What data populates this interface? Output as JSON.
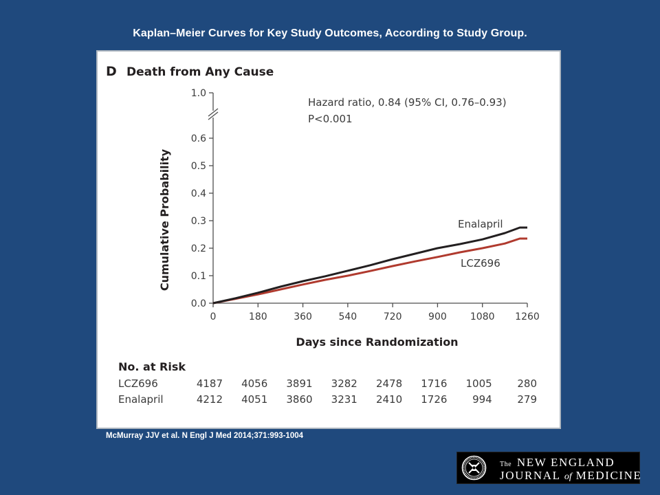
{
  "slide": {
    "title": "Kaplan–Meier Curves for Key Study Outcomes, According to Study Group.",
    "citation": "McMurray JJV et al. N Engl J Med 2014;371:993-1004"
  },
  "logo": {
    "the": "The",
    "line1": "NEW ENGLAND",
    "line2_a": "JOURNAL",
    "line2_of": "of",
    "line2_b": "MEDICINE"
  },
  "colors": {
    "background": "#1f497d",
    "enalapril": "#231f20",
    "lcz696": "#b03a2e",
    "axis": "#4d4d4d"
  },
  "chart_data": {
    "type": "line",
    "panel_label": "D",
    "title": "Death from Any Cause",
    "xlabel": "Days since Randomization",
    "ylabel": "Cumulative Probability",
    "xlim": [
      0,
      1260
    ],
    "ylim": [
      0,
      0.6
    ],
    "y_break_top": 1.0,
    "x_ticks": [
      0,
      180,
      360,
      540,
      720,
      900,
      1080,
      1260
    ],
    "y_ticks": [
      "0.0",
      "0.1",
      "0.2",
      "0.3",
      "0.4",
      "0.5",
      "0.6"
    ],
    "y_top_tick": "1.0",
    "annotation": [
      "Hazard ratio, 0.84 (95% CI, 0.76–0.93)",
      "P<0.001"
    ],
    "series": [
      {
        "name": "Enalapril",
        "x": [
          0,
          90,
          180,
          270,
          360,
          450,
          540,
          630,
          720,
          810,
          900,
          990,
          1080,
          1170,
          1230,
          1260
        ],
        "y": [
          0,
          0.018,
          0.038,
          0.06,
          0.08,
          0.098,
          0.118,
          0.138,
          0.16,
          0.18,
          0.2,
          0.215,
          0.232,
          0.255,
          0.275,
          0.275
        ]
      },
      {
        "name": "LCZ696",
        "x": [
          0,
          90,
          180,
          270,
          360,
          450,
          540,
          630,
          720,
          810,
          900,
          990,
          1080,
          1170,
          1230,
          1260
        ],
        "y": [
          0,
          0.016,
          0.032,
          0.05,
          0.068,
          0.085,
          0.1,
          0.117,
          0.135,
          0.152,
          0.168,
          0.185,
          0.2,
          0.217,
          0.235,
          0.235
        ]
      }
    ],
    "risk_table": {
      "heading": "No. at Risk",
      "rows": [
        {
          "label": "LCZ696",
          "values": [
            "4187",
            "4056",
            "3891",
            "3282",
            "2478",
            "1716",
            "1005",
            "280"
          ]
        },
        {
          "label": "Enalapril",
          "values": [
            "4212",
            "4051",
            "3860",
            "3231",
            "2410",
            "1726",
            "994",
            "279"
          ]
        }
      ]
    }
  }
}
